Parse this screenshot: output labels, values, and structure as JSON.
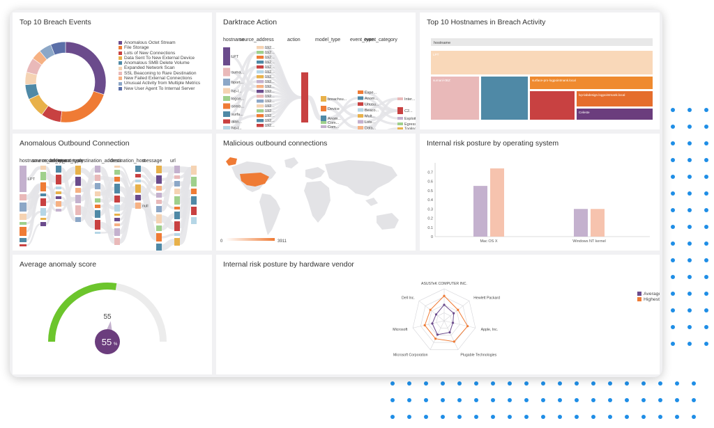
{
  "panels": {
    "top10_breach": {
      "title": "Top 10 Breach Events"
    },
    "darktrace_action": {
      "title": "Darktrace Action"
    },
    "top10_hostnames": {
      "title": "Top 10 Hostnames in Breach Activity"
    },
    "anomalous_outbound": {
      "title": "Anomalous Outbound Connection"
    },
    "malicious_outbound": {
      "title": "Malicious outbound connections"
    },
    "risk_os": {
      "title": "Internal risk posture by operating system"
    },
    "avg_anomaly": {
      "title": "Average anomaly score"
    },
    "risk_vendor": {
      "title": "Internal risk posture by hardware vendor"
    }
  },
  "donut": {
    "legend": [
      {
        "label": "Anomalous Octet Stream",
        "color": "#6b4b8c"
      },
      {
        "label": "File Storage",
        "color": "#ef7b35"
      },
      {
        "label": "Lots of New Connections",
        "color": "#c84141"
      },
      {
        "label": "Data Sent To New External Device",
        "color": "#e8b14a"
      },
      {
        "label": "Anomalous SMB Delete Volume",
        "color": "#4f89a6"
      },
      {
        "label": "Expanded Network Scan",
        "color": "#f5d3b3"
      },
      {
        "label": "SSL Beaconing to Rare Destination",
        "color": "#e9b9b9"
      },
      {
        "label": "New Failed External Connections",
        "color": "#f6b183"
      },
      {
        "label": "Unusual Activity from Multiple Metrics",
        "color": "#8ca7c7"
      },
      {
        "label": "New User Agent To Internal Server",
        "color": "#5b6fa8"
      }
    ],
    "values": [
      30,
      22,
      8,
      8,
      6,
      5,
      6,
      4,
      5,
      6
    ]
  },
  "darktrace": {
    "columns": [
      "hostname",
      "source_address",
      "action",
      "model_type",
      "event_type",
      "event_category"
    ],
    "hostnames": [
      "LPT",
      "suma...",
      "bport...",
      "lvp-l...",
      "logon...",
      "semb...",
      "surfa...",
      "alan...",
      "lvp-l...",
      "lvp-ls...",
      "dhal..."
    ],
    "addresses": [
      "192...",
      "192...",
      "192...",
      "192...",
      "192...",
      "192...",
      "192...",
      "192...",
      "192...",
      "192...",
      "192...",
      "192...",
      "192...",
      "192...",
      "192...",
      "192...",
      "192..."
    ],
    "actions": [
      "breachsu...",
      "Device",
      "Anom..."
    ],
    "model_types": [
      "Com...",
      "Com...",
      "Anom..."
    ],
    "event_types": [
      "Expe...",
      "Anom...",
      "Unusu...",
      "Beaco...",
      "Mult...",
      "Lots...",
      "Data...",
      "File ...",
      "Anom..."
    ],
    "event_categories": [
      "Inter...",
      "C2...",
      "Exploit",
      "Egress",
      "Tooling"
    ]
  },
  "treemap": {
    "header": "hostname",
    "labels": [
      "LPT",
      "sumanl-0BZ",
      "surface-pro-logpointmank.local",
      "lvp-labdesign.logpointmank.local",
      "Celeste"
    ]
  },
  "outbound": {
    "columns": [
      "hostname",
      "source_address",
      "model_type",
      "event_category",
      "event_type",
      "destination_address",
      "destination_host",
      "message",
      "url"
    ],
    "labels": [
      "LPT",
      "null"
    ]
  },
  "map": {
    "min_label": "0",
    "max_label": "3911",
    "min": 0,
    "max": 3911
  },
  "os_chart": {
    "categories": [
      "Mac OS X",
      "Windows NT kernel"
    ],
    "series": [
      {
        "values": [
          0.55,
          0.3
        ],
        "color": "#c4b1ce"
      },
      {
        "values": [
          0.74,
          0.3
        ],
        "color": "#f6c3ae"
      }
    ],
    "yticks": [
      "0",
      "0.1",
      "0.2",
      "0.3",
      "0.4",
      "0.5",
      "0.6",
      "0.7"
    ],
    "ylim": [
      0,
      0.8
    ]
  },
  "gauge": {
    "value": 55,
    "max": 100,
    "value_label": "55",
    "percent_value": "55",
    "percent_sign": "%",
    "fill_color": "#6cc52c",
    "track_color": "#ececec",
    "badge_color": "#6b3d7d"
  },
  "radar": {
    "axes": [
      "ASUSTeK COMPUTER INC.",
      "Hewlett Packard",
      "Apple, Inc.",
      "Plugable Technologies",
      "Microsoft Corporation",
      "Microsoft",
      "Dell Inc."
    ],
    "series": [
      {
        "name": "Average",
        "color": "#6b4b8c",
        "values": [
          0.5,
          0.38,
          0.28,
          0.4,
          0.48,
          0.38,
          0.32
        ]
      },
      {
        "name": "Highest",
        "color": "#ef7b35",
        "values": [
          0.78,
          0.55,
          0.75,
          0.72,
          0.62,
          0.62,
          0.55
        ]
      }
    ],
    "rings": 4
  }
}
